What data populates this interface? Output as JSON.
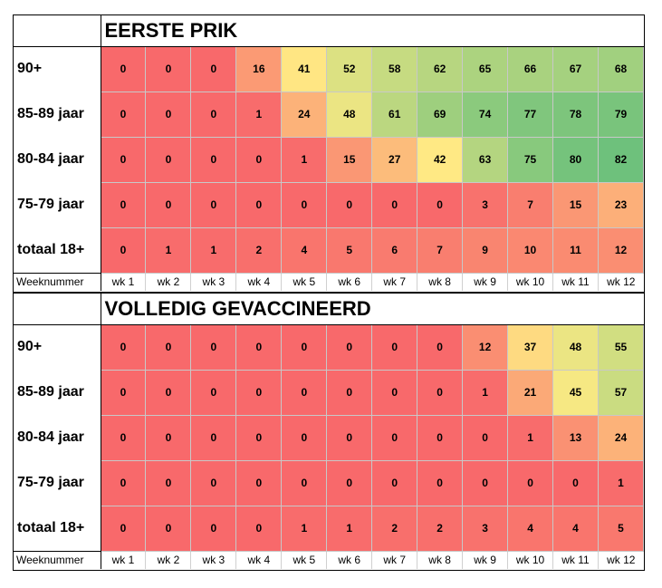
{
  "chart_data": [
    {
      "type": "heatmap",
      "title": "EERSTE PRIK",
      "xlabel": "Weeknummer",
      "columns": [
        "wk 1",
        "wk 2",
        "wk 3",
        "wk 4",
        "wk 5",
        "wk 6",
        "wk 7",
        "wk 8",
        "wk 9",
        "wk 10",
        "wk 11",
        "wk 12"
      ],
      "rows": [
        "90+",
        "85-89 jaar",
        "80-84 jaar",
        "75-79 jaar",
        "totaal 18+"
      ],
      "values": [
        [
          0,
          0,
          0,
          16,
          41,
          52,
          58,
          62,
          65,
          66,
          67,
          68
        ],
        [
          0,
          0,
          0,
          1,
          24,
          48,
          61,
          69,
          74,
          77,
          78,
          79
        ],
        [
          0,
          0,
          0,
          0,
          1,
          15,
          27,
          42,
          63,
          75,
          80,
          82
        ],
        [
          0,
          0,
          0,
          0,
          0,
          0,
          0,
          0,
          3,
          7,
          15,
          23
        ],
        [
          0,
          1,
          1,
          2,
          4,
          5,
          6,
          7,
          9,
          10,
          11,
          12
        ]
      ]
    },
    {
      "type": "heatmap",
      "title": "VOLLEDIG GEVACCINEERD",
      "xlabel": "Weeknummer",
      "columns": [
        "wk 1",
        "wk 2",
        "wk 3",
        "wk 4",
        "wk 5",
        "wk 6",
        "wk 7",
        "wk 8",
        "wk 9",
        "wk 10",
        "wk 11",
        "wk 12"
      ],
      "rows": [
        "90+",
        "85-89 jaar",
        "80-84 jaar",
        "75-79 jaar",
        "totaal 18+"
      ],
      "values": [
        [
          0,
          0,
          0,
          0,
          0,
          0,
          0,
          0,
          12,
          37,
          48,
          55
        ],
        [
          0,
          0,
          0,
          0,
          0,
          0,
          0,
          0,
          1,
          21,
          45,
          57
        ],
        [
          0,
          0,
          0,
          0,
          0,
          0,
          0,
          0,
          0,
          1,
          13,
          24
        ],
        [
          0,
          0,
          0,
          0,
          0,
          0,
          0,
          0,
          0,
          0,
          0,
          1
        ],
        [
          0,
          0,
          0,
          0,
          1,
          1,
          2,
          2,
          3,
          4,
          4,
          5
        ]
      ]
    }
  ],
  "color_scale": {
    "low": "#f8696b",
    "mid": "#ffeb84",
    "high": "#63be7b",
    "min": 0,
    "max": 85
  }
}
